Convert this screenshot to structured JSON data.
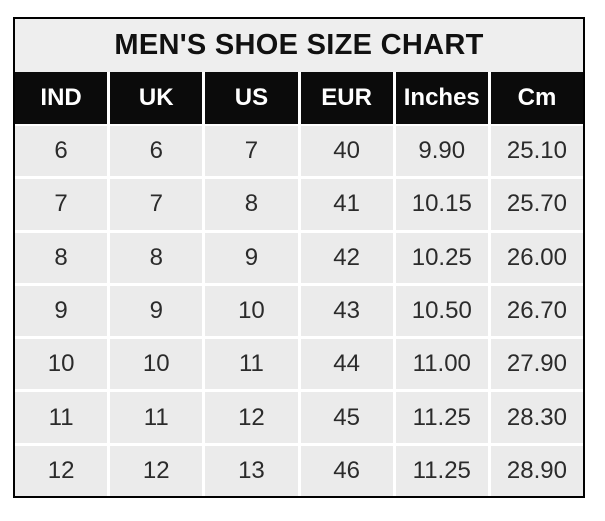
{
  "title": "MEN'S SHOE SIZE CHART",
  "table": {
    "headers": [
      "IND",
      "UK",
      "US",
      "EUR",
      "Inches",
      "Cm"
    ],
    "rows": [
      [
        "6",
        "6",
        "7",
        "40",
        "9.90",
        "25.10"
      ],
      [
        "7",
        "7",
        "8",
        "41",
        "10.15",
        "25.70"
      ],
      [
        "8",
        "8",
        "9",
        "42",
        "10.25",
        "26.00"
      ],
      [
        "9",
        "9",
        "10",
        "43",
        "10.50",
        "26.70"
      ],
      [
        "10",
        "10",
        "11",
        "44",
        "11.00",
        "27.90"
      ],
      [
        "11",
        "11",
        "12",
        "45",
        "11.25",
        "28.30"
      ],
      [
        "12",
        "12",
        "13",
        "46",
        "11.25",
        "28.90"
      ]
    ]
  },
  "colors": {
    "border": "#000000",
    "title_bg": "#eeeeee",
    "title_text": "#111111",
    "header_bg": "#0b0b0b",
    "header_text": "#ffffff",
    "cell_bg": "#ebebeb",
    "cell_text": "#2b2b2b",
    "grid_line": "#ffffff"
  },
  "chart_data": {
    "type": "table",
    "title": "MEN'S SHOE SIZE CHART",
    "columns": [
      "IND",
      "UK",
      "US",
      "EUR",
      "Inches",
      "Cm"
    ],
    "rows": [
      [
        6,
        6,
        7,
        40,
        9.9,
        25.1
      ],
      [
        7,
        7,
        8,
        41,
        10.15,
        25.7
      ],
      [
        8,
        8,
        9,
        42,
        10.25,
        26.0
      ],
      [
        9,
        9,
        10,
        43,
        10.5,
        26.7
      ],
      [
        10,
        10,
        11,
        44,
        11.0,
        27.9
      ],
      [
        11,
        11,
        12,
        45,
        11.25,
        28.3
      ],
      [
        12,
        12,
        13,
        46,
        11.25,
        28.9
      ]
    ]
  }
}
